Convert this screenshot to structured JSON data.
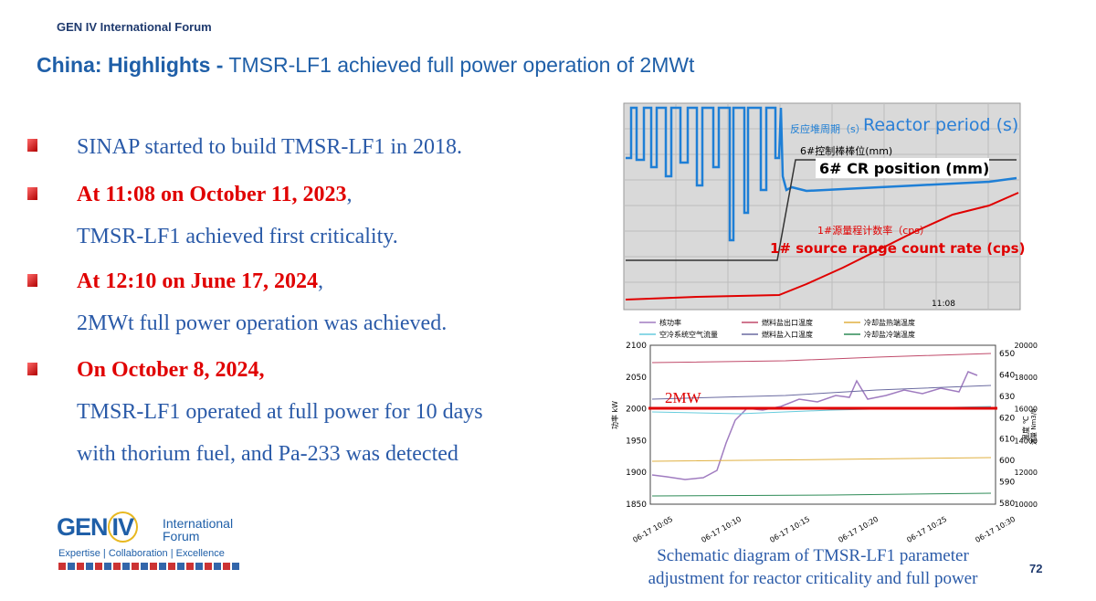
{
  "header": {
    "org": "GEN IV International Forum",
    "title_bold": "China: Highlights -",
    "title_rest": "TMSR-LF1 achieved full power operation of 2MWt"
  },
  "bullets": [
    {
      "lines": [
        "SINAP started to build TMSR-LF1 in 2018."
      ]
    },
    {
      "highlight": "At 11:08 on October 11, 2023",
      "suffix": ",",
      "lines": [
        "TMSR-LF1 achieved first criticality."
      ]
    },
    {
      "highlight": "At 12:10 on June 17, 2024",
      "suffix": ",",
      "lines": [
        "2MWt full power operation was achieved."
      ]
    },
    {
      "highlight": "On October 8, 2024,",
      "lines": [
        "TMSR-LF1 operated at full power for 10 days",
        "with thorium fuel, and Pa-233 was detected"
      ]
    }
  ],
  "figure1": {
    "period_cn": "反应堆周期（s）",
    "period_en": "Reactor period (s)",
    "cr_cn": "6#控制棒棒位(mm)",
    "cr_en": "6# CR position (mm)",
    "src_cn": "1#源量程计数率（cps）",
    "src_en": "1# source range count rate (cps)",
    "time": "11:08"
  },
  "figure2": {
    "legend": [
      "核功率",
      "空冷系统空气流量",
      "燃料盐出口温度",
      "燃料盐入口温度",
      "冷却盐热端温度",
      "冷却盐冷端温度"
    ],
    "left_ticks": [
      "2100",
      "2050",
      "2000",
      "1950",
      "1900",
      "1850"
    ],
    "right_ticks": [
      "650",
      "640",
      "630",
      "620",
      "610",
      "600",
      "590",
      "580"
    ],
    "flow_ticks": [
      "20000",
      "18000",
      "16000",
      "14000",
      "12000",
      "10000"
    ],
    "x_ticks": [
      "06-17 10:05",
      "06-17 10:10",
      "06-17 10:15",
      "06-17 10:20",
      "06-17 10:25",
      "06-17 10:30"
    ],
    "left_label": "功率 kW",
    "right_label": "温度 ℃",
    "flow_label": "流量 Nm3/h",
    "marker": "2MW"
  },
  "caption": [
    "Schematic diagram of TMSR-LF1 parameter",
    "adjustment for reactor criticality and full power"
  ],
  "logo": {
    "gen": "GEN",
    "iv": "IV",
    "line1": "International",
    "line2": "Forum",
    "tagline": "Expertise | Collaboration | Excellence"
  },
  "page_number": "72"
}
